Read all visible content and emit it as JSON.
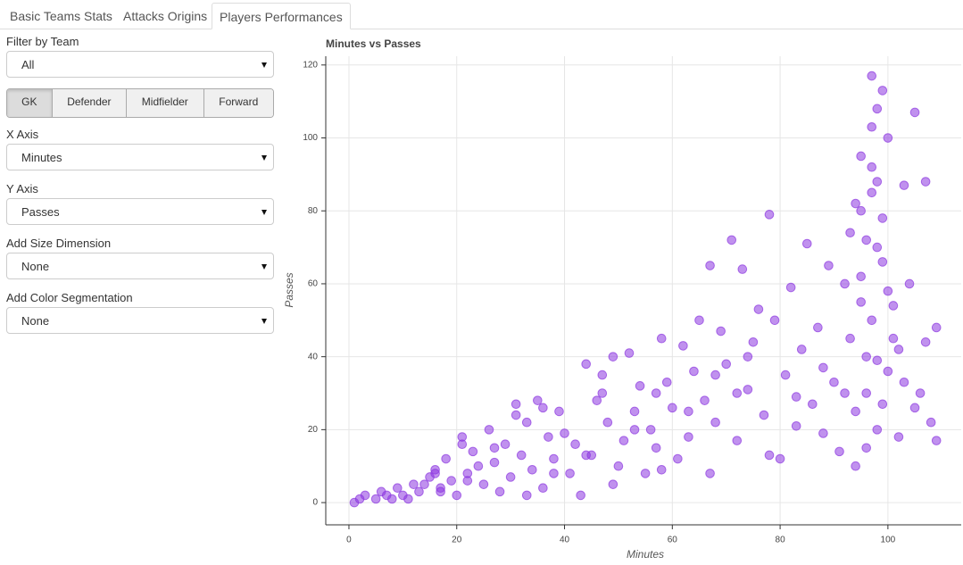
{
  "tabs": [
    "Basic Teams Stats",
    "Attacks Origins",
    "Players Performances"
  ],
  "filter_team": {
    "label": "Filter by Team",
    "value": "All"
  },
  "positions": [
    "GK",
    "Defender",
    "Midfielder",
    "Forward"
  ],
  "x_axis": {
    "label": "X Axis",
    "value": "Minutes"
  },
  "y_axis": {
    "label": "Y Axis",
    "value": "Passes"
  },
  "size_dimension": {
    "label": "Add Size Dimension",
    "value": "None"
  },
  "color_segmentation": {
    "label": "Add Color Segmentation",
    "value": "None"
  },
  "chart_data": {
    "type": "scatter",
    "title": "Minutes vs Passes",
    "x_label": "Minutes",
    "y_label": "Passes",
    "color": "#8c36e0",
    "grid": true,
    "xlim": [
      -4.3,
      113.6
    ],
    "ylim": [
      -6.1,
      122.4
    ],
    "xticks": [
      0,
      20,
      40,
      60,
      80,
      100
    ],
    "yticks": [
      0,
      20,
      40,
      60,
      80,
      100,
      120
    ],
    "x": [
      1,
      3,
      5,
      6,
      8,
      9,
      10,
      12,
      13,
      15,
      16,
      17,
      18,
      19,
      20,
      21,
      22,
      23,
      24,
      25,
      26,
      27,
      28,
      29,
      30,
      31,
      32,
      33,
      34,
      35,
      36,
      37,
      38,
      39,
      40,
      41,
      42,
      43,
      44,
      45,
      46,
      47,
      48,
      49,
      50,
      51,
      52,
      53,
      54,
      55,
      56,
      57,
      58,
      59,
      60,
      61,
      62,
      63,
      64,
      65,
      66,
      67,
      68,
      69,
      70,
      71,
      72,
      73,
      74,
      75,
      76,
      77,
      78,
      79,
      80,
      81,
      82,
      83,
      84,
      85,
      86,
      87,
      88,
      89,
      90,
      91,
      92,
      93,
      94,
      95,
      96,
      97,
      98,
      99,
      100,
      95,
      96,
      97,
      98,
      99,
      94,
      95,
      96,
      97,
      98,
      99,
      100,
      101,
      102,
      103,
      104,
      105,
      106,
      107,
      108,
      109,
      93,
      96,
      98,
      100,
      95,
      97,
      99,
      101,
      103,
      105,
      107,
      109,
      94,
      98,
      11,
      14,
      17,
      22,
      27,
      33,
      38,
      44,
      49,
      53,
      58,
      63,
      67,
      72,
      78,
      83,
      88,
      92,
      97,
      102,
      2,
      7,
      16,
      21,
      31,
      36,
      47,
      57,
      68,
      74
    ],
    "values": [
      0,
      2,
      1,
      3,
      1,
      4,
      2,
      5,
      3,
      7,
      9,
      4,
      12,
      6,
      2,
      18,
      8,
      14,
      10,
      5,
      20,
      11,
      3,
      16,
      7,
      27,
      13,
      22,
      9,
      28,
      4,
      18,
      12,
      25,
      19,
      8,
      16,
      2,
      38,
      13,
      28,
      35,
      22,
      40,
      10,
      17,
      41,
      25,
      32,
      8,
      20,
      15,
      45,
      33,
      26,
      12,
      43,
      18,
      36,
      50,
      28,
      65,
      22,
      47,
      38,
      72,
      17,
      64,
      31,
      44,
      53,
      24,
      79,
      50,
      12,
      35,
      59,
      21,
      42,
      71,
      27,
      48,
      19,
      65,
      33,
      14,
      60,
      45,
      82,
      95,
      72,
      117,
      108,
      113,
      100,
      55,
      40,
      103,
      88,
      66,
      25,
      62,
      30,
      50,
      20,
      78,
      36,
      45,
      18,
      87,
      60,
      107,
      30,
      88,
      22,
      48,
      74,
      15,
      39,
      58,
      80,
      92,
      27,
      54,
      33,
      26,
      44,
      17,
      10,
      70,
      1,
      5,
      3,
      6,
      15,
      2,
      8,
      13,
      5,
      20,
      9,
      25,
      8,
      30,
      13,
      29,
      37,
      30,
      85,
      42,
      1,
      2,
      8,
      16,
      24,
      26,
      30,
      30,
      35,
      40
    ]
  }
}
